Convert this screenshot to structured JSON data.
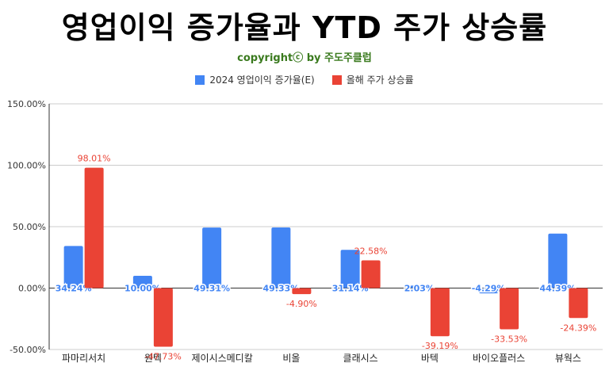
{
  "header": {
    "title": "영업이익 증가율과 YTD 주가 상승률",
    "subtitle": "copyrightⓒ by 주도주클럽"
  },
  "chart_data": {
    "type": "bar",
    "title": "영업이익 증가율과 YTD 주가 상승률",
    "categories": [
      "파마리서치",
      "원텍",
      "제이시스메디칼",
      "비올",
      "클래시스",
      "바텍",
      "바이오플러스",
      "뷰웍스"
    ],
    "series": [
      {
        "name": "2024 영업이익 증가율(E)",
        "color": "#4285f4",
        "values": [
          34.24,
          10.0,
          49.31,
          49.33,
          31.14,
          2.03,
          -4.29,
          44.39
        ],
        "labels": [
          "34.24%",
          "10.00%",
          "49.31%",
          "49.33%",
          "31.14%",
          "2.03%",
          "-4.29%",
          "44.39%"
        ]
      },
      {
        "name": "올해 주가 상승률",
        "color": "#ea4335",
        "values": [
          98.01,
          -47.73,
          0,
          -4.9,
          22.58,
          -39.19,
          -33.53,
          -24.39
        ],
        "labels": [
          "98.01%",
          "-47.73%",
          "",
          "-4.90%",
          "22.58%",
          "-39.19%",
          "-33.53%",
          "-24.39%"
        ]
      }
    ],
    "ylim": [
      -50,
      150
    ],
    "yticks": [
      -50,
      0,
      50,
      100,
      150
    ],
    "ytick_labels": [
      "-50.00%",
      "0.00%",
      "50.00%",
      "100.00%",
      "150.00%"
    ],
    "grid": true,
    "legend": "top-center"
  }
}
